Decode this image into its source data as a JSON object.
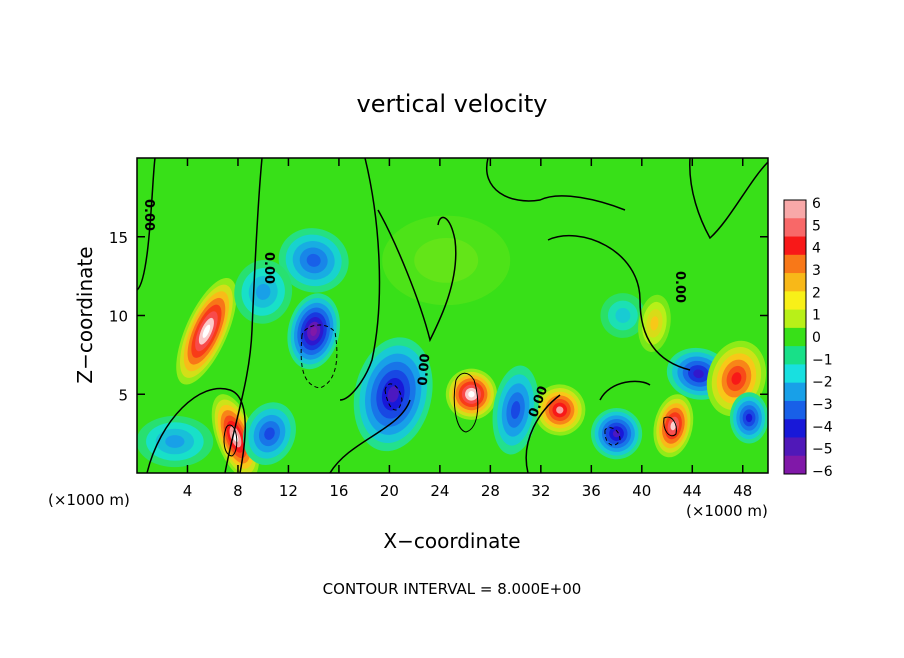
{
  "chart_data": {
    "type": "heatmap",
    "title": "vertical velocity",
    "xlabel": "X−coordinate",
    "ylabel": "Z−coordinate",
    "x_unit_left": "(×1000 m)",
    "x_unit_right": "(×1000 m)",
    "footer": "CONTOUR INTERVAL = 8.000E+00",
    "xlim": [
      0,
      50
    ],
    "ylim": [
      0,
      20
    ],
    "x_ticks": [
      4,
      8,
      12,
      16,
      20,
      24,
      28,
      32,
      36,
      40,
      44,
      48
    ],
    "y_ticks": [
      5,
      10,
      15
    ],
    "colorbar": {
      "min": -6,
      "max": 6,
      "ticks": [
        "6",
        "5",
        "4",
        "3",
        "2",
        "1",
        "0",
        "−1",
        "−2",
        "−3",
        "−4",
        "−5",
        "−6"
      ],
      "colors": [
        "#f8a8a8",
        "#f86868",
        "#f81818",
        "#f87818",
        "#f8b818",
        "#f8f018",
        "#b8f018",
        "#38e018",
        "#18e088",
        "#18e0e0",
        "#18a0e8",
        "#1860e8",
        "#1818d8",
        "#5018b8",
        "#8018a8"
      ]
    },
    "contour_labels": [
      "0.00",
      "0.00",
      "0.00",
      "0.00",
      "0.00"
    ],
    "features": [
      {
        "x": 5.5,
        "z": 9.0,
        "value": 8.5
      },
      {
        "x": 7.8,
        "z": 2.3,
        "value": 8.0
      },
      {
        "x": 14.0,
        "z": 9.0,
        "value": -8.5
      },
      {
        "x": 14.0,
        "z": 13.5,
        "value": -4.5
      },
      {
        "x": 10.5,
        "z": 2.5,
        "value": -5.0
      },
      {
        "x": 20.3,
        "z": 5.0,
        "value": -7.0
      },
      {
        "x": 26.5,
        "z": 5.0,
        "value": 8.5
      },
      {
        "x": 33.5,
        "z": 4.0,
        "value": 7.0
      },
      {
        "x": 30.0,
        "z": 4.0,
        "value": -5.0
      },
      {
        "x": 38.0,
        "z": 2.5,
        "value": -7.0
      },
      {
        "x": 42.5,
        "z": 3.0,
        "value": 7.5
      },
      {
        "x": 44.5,
        "z": 6.3,
        "value": -6.5
      },
      {
        "x": 47.5,
        "z": 6.0,
        "value": 6.0
      },
      {
        "x": 48.5,
        "z": 3.5,
        "value": -6.0
      },
      {
        "x": 3.0,
        "z": 2.0,
        "value": -3.0
      },
      {
        "x": 10.0,
        "z": 11.5,
        "value": -3.0
      },
      {
        "x": 38.5,
        "z": 10.0,
        "value": -2.0
      },
      {
        "x": 41.0,
        "z": 9.5,
        "value": 3.0
      },
      {
        "x": 24.5,
        "z": 13.5,
        "value": 0.5
      }
    ]
  }
}
